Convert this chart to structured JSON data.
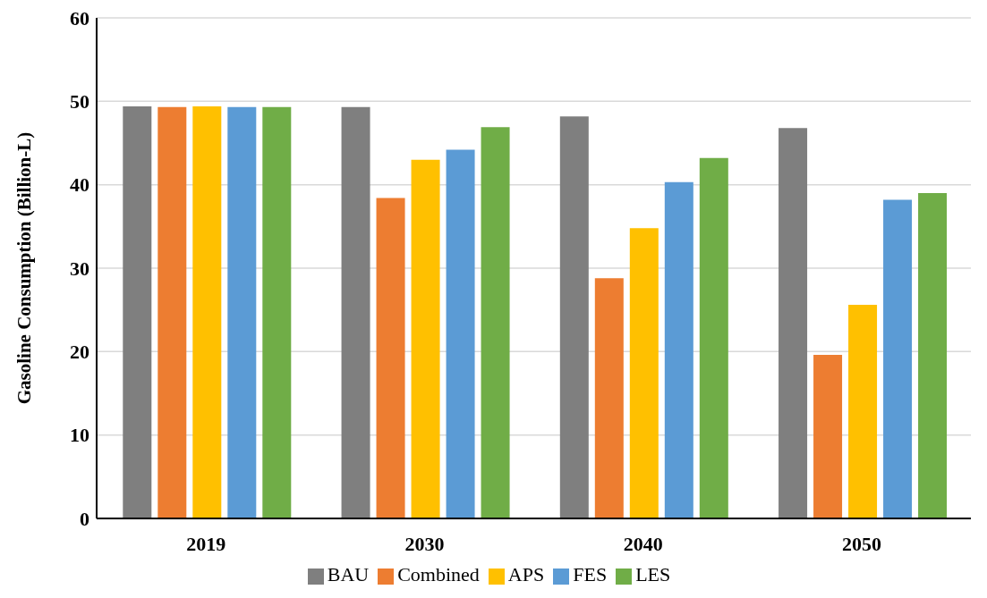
{
  "chart_data": {
    "type": "bar",
    "ylabel": "Gasoline Consumption  (Billion-L)",
    "categories": [
      "2019",
      "2030",
      "2040",
      "2050"
    ],
    "series": [
      {
        "name": "BAU",
        "color": "#7f7f7f",
        "values": [
          49.4,
          49.3,
          48.2,
          46.8
        ]
      },
      {
        "name": "Combined",
        "color": "#ed7d31",
        "values": [
          49.3,
          38.4,
          28.8,
          19.6
        ]
      },
      {
        "name": "APS",
        "color": "#ffc000",
        "values": [
          49.4,
          43.0,
          34.8,
          25.6
        ]
      },
      {
        "name": "FES",
        "color": "#5b9bd5",
        "values": [
          49.3,
          44.2,
          40.3,
          38.2
        ]
      },
      {
        "name": "LES",
        "color": "#70ad47",
        "values": [
          49.3,
          46.9,
          43.2,
          39.0
        ]
      }
    ],
    "ylim": [
      0,
      60
    ],
    "yticks": [
      0,
      10,
      20,
      30,
      40,
      50,
      60
    ],
    "grid": "y",
    "legend": "bottom"
  }
}
